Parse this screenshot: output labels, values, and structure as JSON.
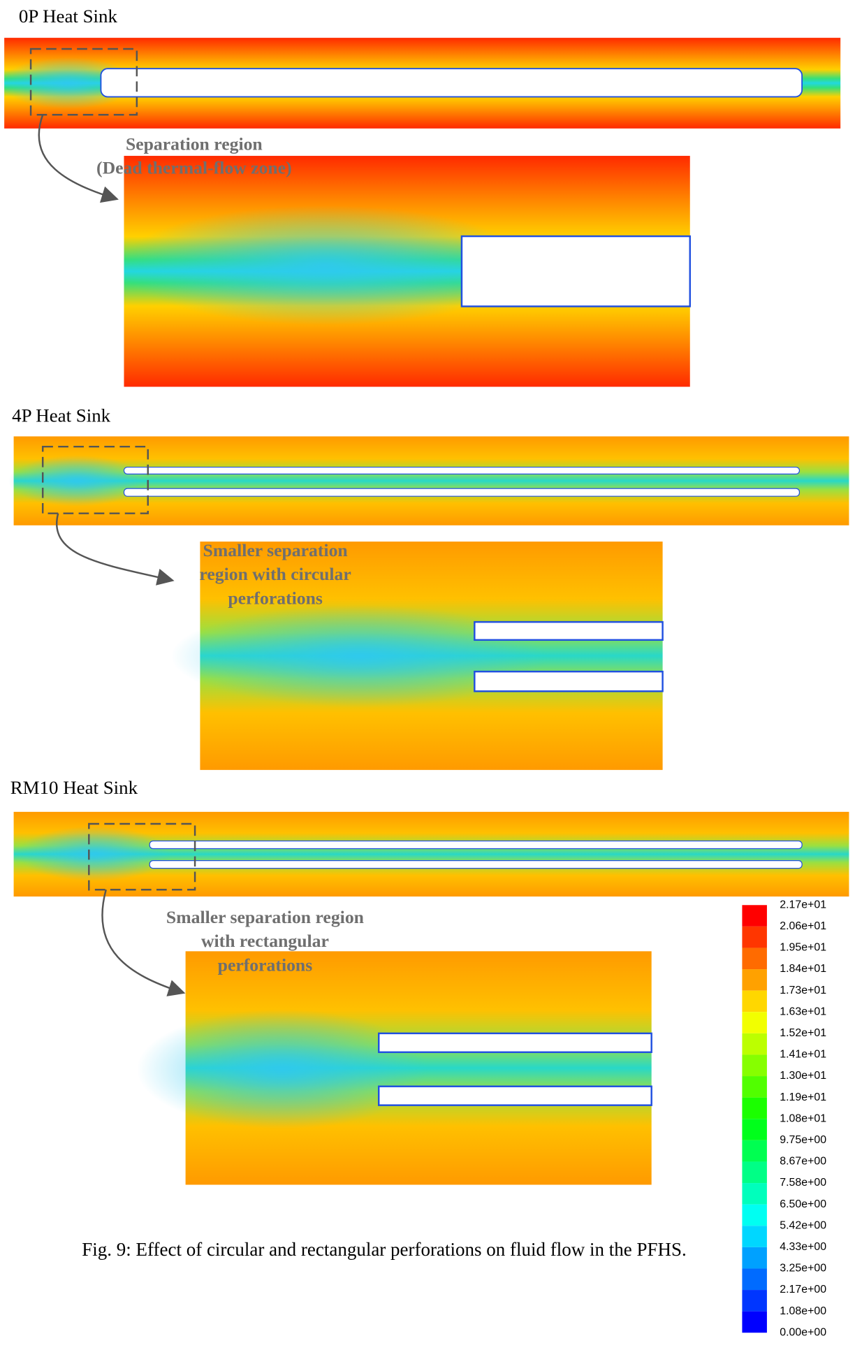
{
  "panels": [
    {
      "title": "0P Heat Sink",
      "annotation": [
        "Separation region",
        "(Dead thermal-flow zone)"
      ]
    },
    {
      "title": "4P Heat Sink",
      "annotation": [
        "Smaller separation",
        "region with circular",
        "perforations"
      ]
    },
    {
      "title": "RM10 Heat Sink",
      "annotation": [
        "Smaller separation region",
        "with rectangular",
        "perforations"
      ]
    }
  ],
  "colorbar": {
    "labels": [
      "2.17e+01",
      "2.06e+01",
      "1.95e+01",
      "1.84e+01",
      "1.73e+01",
      "1.63e+01",
      "1.52e+01",
      "1.41e+01",
      "1.30e+01",
      "1.19e+01",
      "1.08e+01",
      "9.75e+00",
      "8.67e+00",
      "7.58e+00",
      "6.50e+00",
      "5.42e+00",
      "4.33e+00",
      "3.25e+00",
      "2.17e+00",
      "1.08e+00",
      "0.00e+00"
    ]
  },
  "caption": "Fig. 9: Effect of circular and rectangular perforations on fluid flow in the PFHS."
}
